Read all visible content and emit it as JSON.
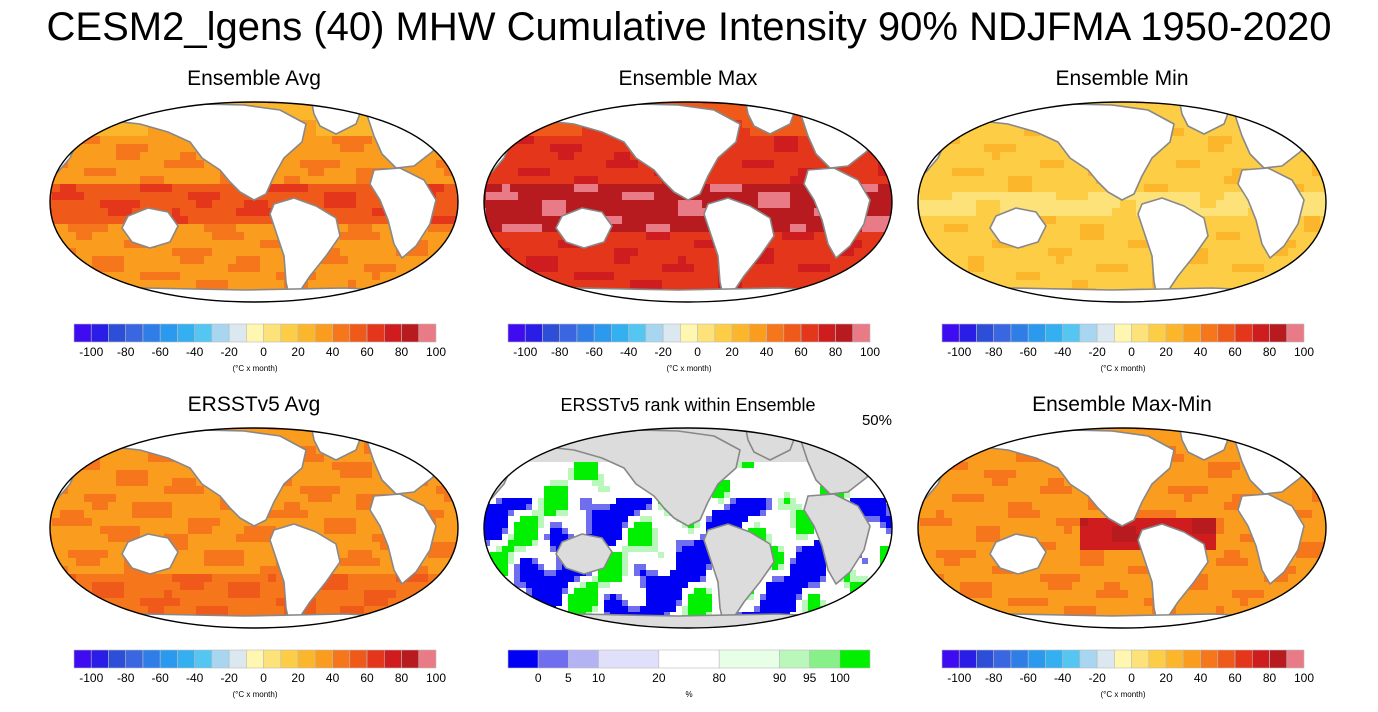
{
  "figure": {
    "title": "CESM2_lgens (40) MHW Cumulative Intensity 90% NDJFMA 1950-2020"
  },
  "colors": {
    "intensity_scale": [
      "#3f0bf0",
      "#2a1ee6",
      "#2d4fd8",
      "#3a66e2",
      "#2f7ee8",
      "#2b99ee",
      "#34b0f0",
      "#55c6f2",
      "#a8d5ef",
      "#dbe8f0",
      "#fff6b0",
      "#fde27a",
      "#fdcd46",
      "#fcb62c",
      "#fa9c1e",
      "#f6771b",
      "#ef5a1b",
      "#e3361b",
      "#cf1c1f",
      "#b71a1f",
      "#e87b86"
    ],
    "rank_scale": [
      "#0000f5",
      "#6e6eef",
      "#b3b3f4",
      "#e0e0fa",
      "#ffffff",
      "#e6ffe6",
      "#baf7ba",
      "#88f088",
      "#00f000"
    ],
    "land": "#ffffff",
    "land_rank": "#dcdcdc",
    "coast": "#888888"
  },
  "colorbar_intensity": {
    "ticks": [
      "-100",
      "-80",
      "-60",
      "-40",
      "-20",
      "0",
      "20",
      "40",
      "60",
      "80",
      "100"
    ],
    "units": "(°C x month)"
  },
  "colorbar_rank": {
    "ticks": [
      "0",
      "5",
      "10",
      "20",
      "80",
      "90",
      "95",
      "100"
    ],
    "units": "%"
  },
  "panels": [
    {
      "title": "Ensemble Avg",
      "field": "avg"
    },
    {
      "title": "Ensemble Max",
      "field": "max"
    },
    {
      "title": "Ensemble Min",
      "field": "min"
    },
    {
      "title": "ERSSTv5 Avg",
      "field": "obs"
    },
    {
      "title": "ERSSTv5 rank within Ensemble",
      "field": "rank",
      "corner_label": "50%"
    },
    {
      "title": "Ensemble Max-Min",
      "field": "range"
    }
  ]
}
